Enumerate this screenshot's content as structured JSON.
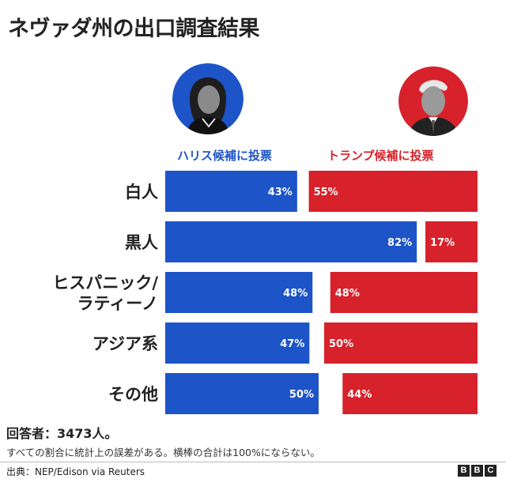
{
  "title": "ネヴァダ州の出口調査結果",
  "harris_label": "ハリス候補に投票",
  "trump_label": "トランプ候補に投票",
  "respondents": "回答者：3473人。",
  "disclaimer": "すべての割合に統計上の誤差がある。横棒の合計は100%にならない。",
  "source": "出典：NEP/Edison via Reuters",
  "logo": [
    "B",
    "B",
    "C"
  ],
  "colors": {
    "harris": "#1d54c7",
    "trump": "#d7212b",
    "text": "#222222"
  },
  "chart_data": {
    "type": "bar",
    "orientation": "horizontal",
    "stacked": true,
    "categories": [
      "白人",
      "黒人",
      "ヒスパニック/ラティーノ",
      "アジア系",
      "その他"
    ],
    "category_lines": [
      [
        "白人"
      ],
      [
        "黒人"
      ],
      [
        "ヒスパニック/",
        "ラティーノ"
      ],
      [
        "アジア系"
      ],
      [
        "その他"
      ]
    ],
    "xlim": [
      0,
      100
    ],
    "series": [
      {
        "name": "ハリス候補に投票",
        "values": [
          43,
          82,
          48,
          47,
          50
        ],
        "labels": [
          "43%",
          "82%",
          "48%",
          "47%",
          "50%"
        ],
        "color": "#1d54c7"
      },
      {
        "name": "トランプ候補に投票",
        "values": [
          55,
          17,
          48,
          50,
          44
        ],
        "labels": [
          "55%",
          "17%",
          "48%",
          "50%",
          "44%"
        ],
        "color": "#d7212b"
      }
    ],
    "legend": "top"
  }
}
